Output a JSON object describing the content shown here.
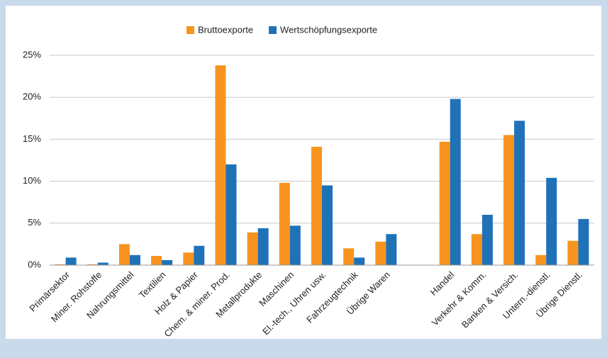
{
  "chart_data": {
    "type": "bar",
    "categories": [
      "Primärsektor",
      "Miner. Rohstoffe",
      "Nahrungsmittel",
      "Textilien",
      "Holz & Papier",
      "Chem. & miner. Prod.",
      "Metallprodukte",
      "Maschinen",
      "El.-tech., Uhren usw.",
      "Fahrzeugtechnik",
      "Übrige Waren",
      null,
      "Handel",
      "Verkehr & Komm.",
      "Banken & Versich.",
      "Untern.-dienstl.",
      "Übrige Dienstl."
    ],
    "series": [
      {
        "name": "Bruttoexporte",
        "color": "#f7941d",
        "values": [
          0.1,
          0.1,
          2.5,
          1.1,
          1.5,
          23.8,
          3.9,
          9.8,
          14.1,
          2.0,
          2.8,
          null,
          14.7,
          3.7,
          15.5,
          1.2,
          2.9
        ]
      },
      {
        "name": "Wertschöpfungsexporte",
        "color": "#1f72b8",
        "values": [
          0.9,
          0.3,
          1.2,
          0.6,
          2.3,
          12.0,
          4.4,
          4.7,
          9.5,
          0.9,
          3.7,
          null,
          19.8,
          6.0,
          17.2,
          10.4,
          5.5
        ]
      }
    ],
    "ylim": [
      0,
      25
    ],
    "yticks": [
      {
        "value": 0,
        "label": "0%"
      },
      {
        "value": 5,
        "label": "5%"
      },
      {
        "value": 10,
        "label": "10%"
      },
      {
        "value": 15,
        "label": "15%"
      },
      {
        "value": 20,
        "label": "20%"
      },
      {
        "value": 25,
        "label": "25%"
      }
    ],
    "grid": true,
    "legend": "top"
  }
}
